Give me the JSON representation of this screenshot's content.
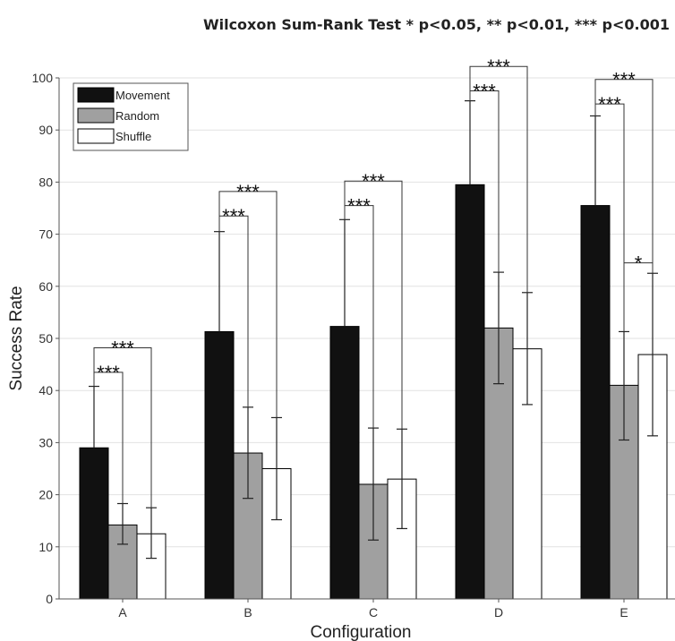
{
  "chart_data": {
    "type": "bar",
    "title": "Wilcoxon Sum-Rank Test * p<0.05, ** p<0.01, *** p<0.001",
    "xlabel": "Configuration",
    "ylabel": "Success Rate",
    "ylim": [
      0,
      100
    ],
    "yticks": [
      0,
      10,
      20,
      30,
      40,
      50,
      60,
      70,
      80,
      90,
      100
    ],
    "grid": true,
    "legend_position": "top-left",
    "categories": [
      "A",
      "B",
      "C",
      "D",
      "E"
    ],
    "series": [
      {
        "name": "Movement",
        "color": "#111111",
        "values": [
          29,
          51.3,
          52.3,
          79.5,
          75.5
        ],
        "error_low": [
          29,
          51.3,
          52.3,
          79.5,
          75.5
        ],
        "error_high": [
          40.8,
          70.5,
          72.8,
          95.6,
          92.7
        ]
      },
      {
        "name": "Random",
        "color": "#a0a0a0",
        "values": [
          14.2,
          28,
          22,
          52,
          41
        ],
        "error_low": [
          10.5,
          19.3,
          11.3,
          41.3,
          30.5
        ],
        "error_high": [
          18.3,
          36.8,
          32.8,
          62.7,
          51.3
        ]
      },
      {
        "name": "Shuffle",
        "color": "#ffffff",
        "values": [
          12.5,
          25,
          23,
          48,
          46.9
        ],
        "error_low": [
          7.8,
          15.2,
          13.5,
          37.3,
          31.3
        ],
        "error_high": [
          17.5,
          34.8,
          32.6,
          58.8,
          62.5
        ]
      }
    ],
    "significance": [
      {
        "category": "A",
        "from": "Movement",
        "to": "Random",
        "y": 43.5,
        "label": "***"
      },
      {
        "category": "A",
        "from": "Movement",
        "to": "Shuffle",
        "y": 48.2,
        "label": "***"
      },
      {
        "category": "B",
        "from": "Movement",
        "to": "Random",
        "y": 73.5,
        "label": "***"
      },
      {
        "category": "B",
        "from": "Movement",
        "to": "Shuffle",
        "y": 78.2,
        "label": "***"
      },
      {
        "category": "C",
        "from": "Movement",
        "to": "Random",
        "y": 75.5,
        "label": "***"
      },
      {
        "category": "C",
        "from": "Movement",
        "to": "Shuffle",
        "y": 80.2,
        "label": "***"
      },
      {
        "category": "D",
        "from": "Movement",
        "to": "Random",
        "y": 97.5,
        "label": "***"
      },
      {
        "category": "D",
        "from": "Movement",
        "to": "Shuffle",
        "y": 102.2,
        "label": "***"
      },
      {
        "category": "E",
        "from": "Movement",
        "to": "Random",
        "y": 95,
        "label": "***"
      },
      {
        "category": "E",
        "from": "Movement",
        "to": "Shuffle",
        "y": 99.7,
        "label": "***"
      },
      {
        "category": "E",
        "from": "Random",
        "to": "Shuffle",
        "y": 64.5,
        "label": "*"
      }
    ]
  }
}
